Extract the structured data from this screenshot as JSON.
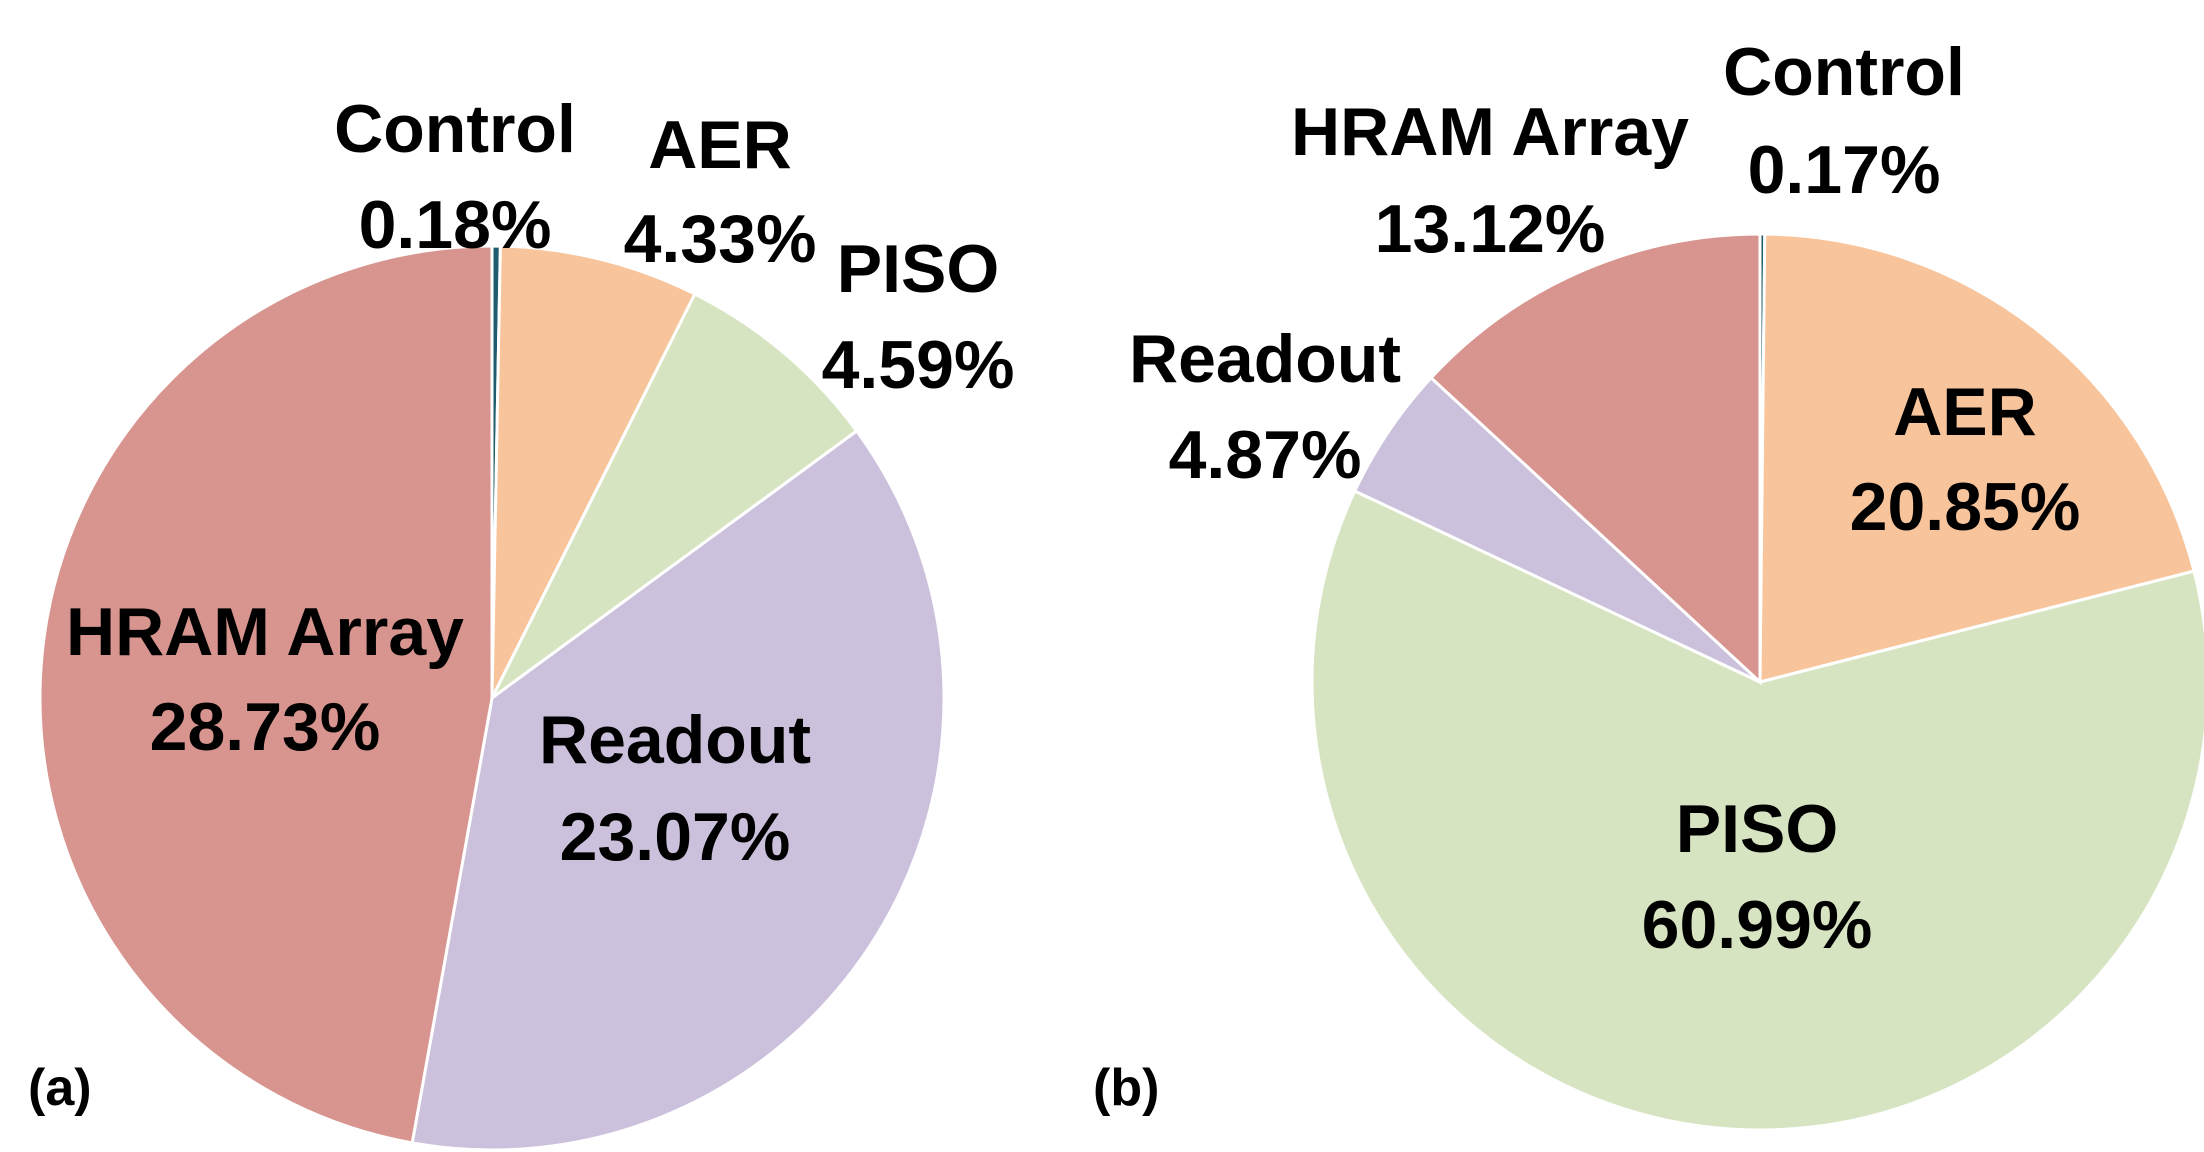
{
  "chart_data": [
    {
      "type": "pie",
      "panel_label": "(a)",
      "slices": [
        {
          "name": "Control",
          "value": 0.18,
          "value_label": "0.18%",
          "color": "#1f5c6e"
        },
        {
          "name": "AER",
          "value": 4.33,
          "value_label": "4.33%",
          "color": "#f8c49b"
        },
        {
          "name": "PISO",
          "value": 4.59,
          "value_label": "4.59%",
          "color": "#d7e4c1"
        },
        {
          "name": "Readout",
          "value": 23.07,
          "value_label": "23.07%",
          "color": "#cbc1dc"
        },
        {
          "name": "HRAM Array",
          "value": 28.73,
          "value_label": "28.73%",
          "color": "#d8958f"
        }
      ]
    },
    {
      "type": "pie",
      "panel_label": "(b)",
      "slices": [
        {
          "name": "Control",
          "value": 0.17,
          "value_label": "0.17%",
          "color": "#1f5c6e"
        },
        {
          "name": "AER",
          "value": 20.85,
          "value_label": "20.85%",
          "color": "#f8c49b"
        },
        {
          "name": "PISO",
          "value": 60.99,
          "value_label": "60.99%",
          "color": "#d7e4c1"
        },
        {
          "name": "Readout",
          "value": 4.87,
          "value_label": "4.87%",
          "color": "#cbc1dc"
        },
        {
          "name": "HRAM Array",
          "value": 13.12,
          "value_label": "13.12%",
          "color": "#d8958f"
        }
      ]
    }
  ]
}
